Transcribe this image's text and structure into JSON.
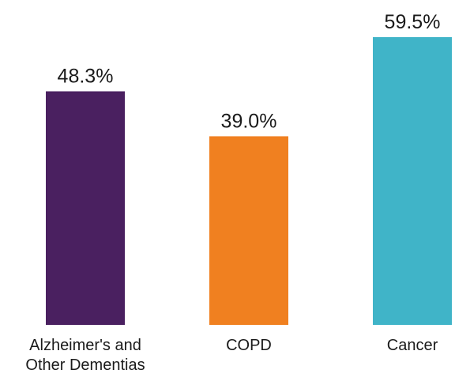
{
  "chart_data": {
    "type": "bar",
    "categories": [
      [
        "Alzheimer's and",
        "Other Dementias"
      ],
      [
        "COPD"
      ],
      [
        "Cancer"
      ]
    ],
    "values": [
      48.3,
      39.0,
      59.5
    ],
    "data_labels": [
      "48.3%",
      "39.0%",
      "59.5%"
    ],
    "colors": [
      "#4a2060",
      "#f08020",
      "#40b4c8"
    ],
    "ylim": [
      0,
      59.5
    ],
    "grid": false,
    "legend": "none",
    "title": "",
    "xlabel": "",
    "ylabel": ""
  }
}
